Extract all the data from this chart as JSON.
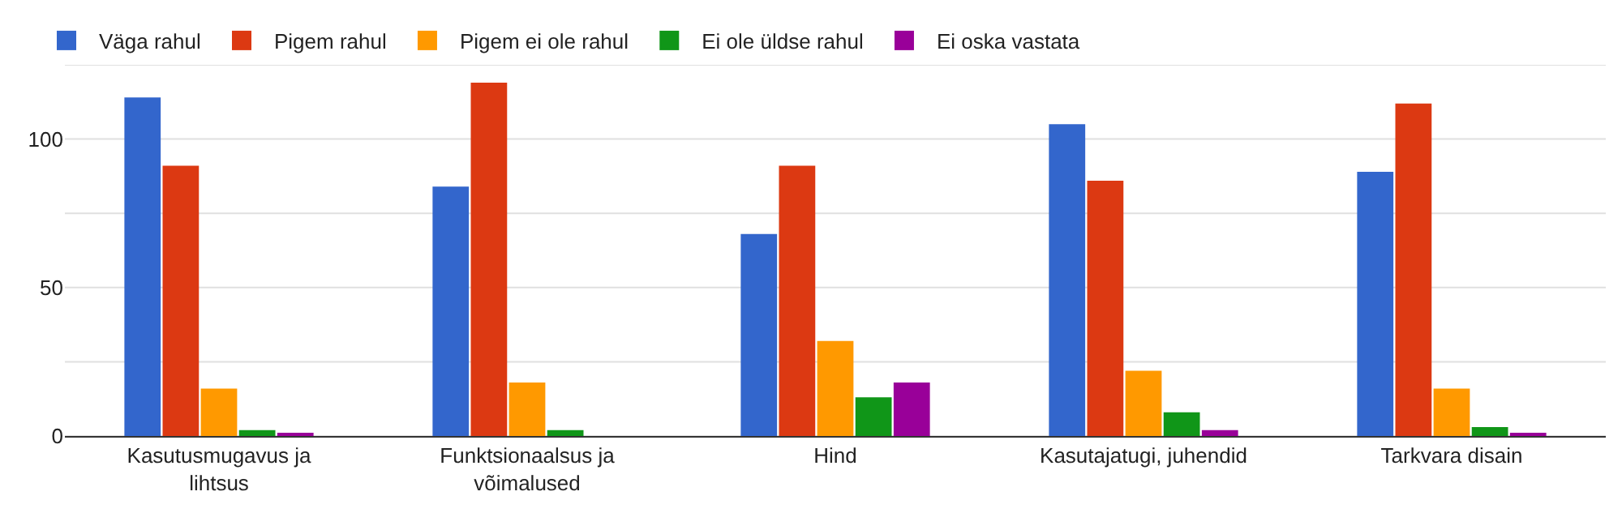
{
  "chart_data": {
    "type": "bar",
    "categories": [
      "Kasutusmugavus ja lihtsus",
      "Funktsionaalsus ja võimalused",
      "Hind",
      "Kasutajatugi, juhendid",
      "Tarkvara disain"
    ],
    "series": [
      {
        "name": "Väga rahul",
        "color": "#3366cc",
        "values": [
          114,
          84,
          68,
          105,
          89
        ]
      },
      {
        "name": "Pigem rahul",
        "color": "#dc3912",
        "values": [
          91,
          119,
          91,
          86,
          112
        ]
      },
      {
        "name": "Pigem ei ole rahul",
        "color": "#ff9900",
        "values": [
          16,
          18,
          32,
          22,
          16
        ]
      },
      {
        "name": "Ei ole üldse rahul",
        "color": "#109618",
        "values": [
          2,
          2,
          13,
          8,
          3
        ]
      },
      {
        "name": "Ei oska vastata",
        "color": "#990099",
        "values": [
          1,
          0,
          18,
          2,
          1
        ]
      }
    ],
    "ylim": [
      0,
      125
    ],
    "yticks": [
      0,
      {
        "value": 25,
        "label": null
      },
      50,
      {
        "value": 75,
        "label": null
      },
      100,
      {
        "value": 125,
        "label": null
      }
    ],
    "grid": true,
    "legend": "top left"
  }
}
